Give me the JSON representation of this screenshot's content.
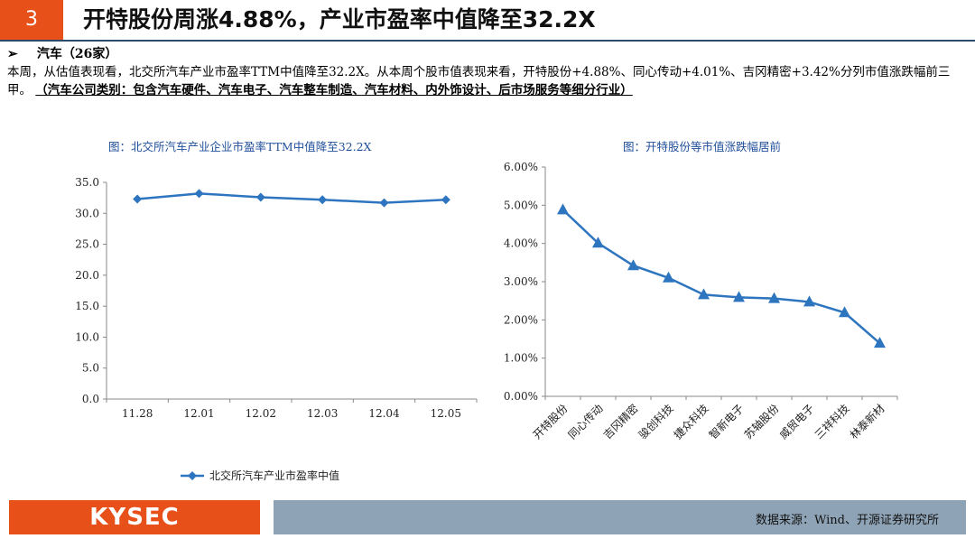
{
  "header": {
    "number": "3",
    "title": "开特股份周涨4.88%，产业市盈率中值降至32.2X"
  },
  "section": {
    "arrow": "➢",
    "label": "汽车（26家）"
  },
  "body": {
    "text": "本周，从估值表现看，北交所汽车产业市盈率TTM中值降至32.2X。从本周个股市值表现来看，开特股份+4.88%、同心传动+4.01%、吉冈精密+3.42%分列市值涨跌幅前三甲。",
    "note": "（汽车公司类别：包含汽车硬件、汽车电子、汽车整车制造、汽车材料、内外饰设计、后市场服务等细分行业）"
  },
  "chart_data": [
    {
      "type": "line",
      "title": "图：北交所汽车产业企业市盈率TTM中值降至32.2X",
      "categories": [
        "11.28",
        "12.01",
        "12.02",
        "12.03",
        "12.04",
        "12.05"
      ],
      "series": [
        {
          "name": "北交所汽车产业市盈率中值",
          "values": [
            32.3,
            33.2,
            32.6,
            32.2,
            31.7,
            32.2
          ]
        }
      ],
      "yticks": [
        "0.0",
        "5.0",
        "10.0",
        "15.0",
        "20.0",
        "25.0",
        "30.0",
        "35.0"
      ],
      "ylim": [
        0,
        35
      ],
      "color": "#2e75c0",
      "marker": "diamond",
      "legend": "bottom",
      "grid": false
    },
    {
      "type": "line",
      "title": "图：开特股份等市值涨跌幅居前",
      "categories": [
        "开特股份",
        "同心传动",
        "吉冈精密",
        "骏创科技",
        "捷众科技",
        "智新电子",
        "苏轴股份",
        "威贸电子",
        "三祥科技",
        "林泰新材"
      ],
      "series": [
        {
          "values": [
            4.88,
            4.01,
            3.42,
            3.1,
            2.66,
            2.59,
            2.56,
            2.47,
            2.19,
            1.39
          ]
        }
      ],
      "yticks": [
        "0.00%",
        "1.00%",
        "2.00%",
        "3.00%",
        "4.00%",
        "5.00%",
        "6.00%"
      ],
      "ylim": [
        0,
        6
      ],
      "color": "#2e75c0",
      "marker": "triangle",
      "grid": false
    }
  ],
  "footer": {
    "logo": "KYSEC",
    "source": "数据来源：Wind、开源证券研究所"
  }
}
